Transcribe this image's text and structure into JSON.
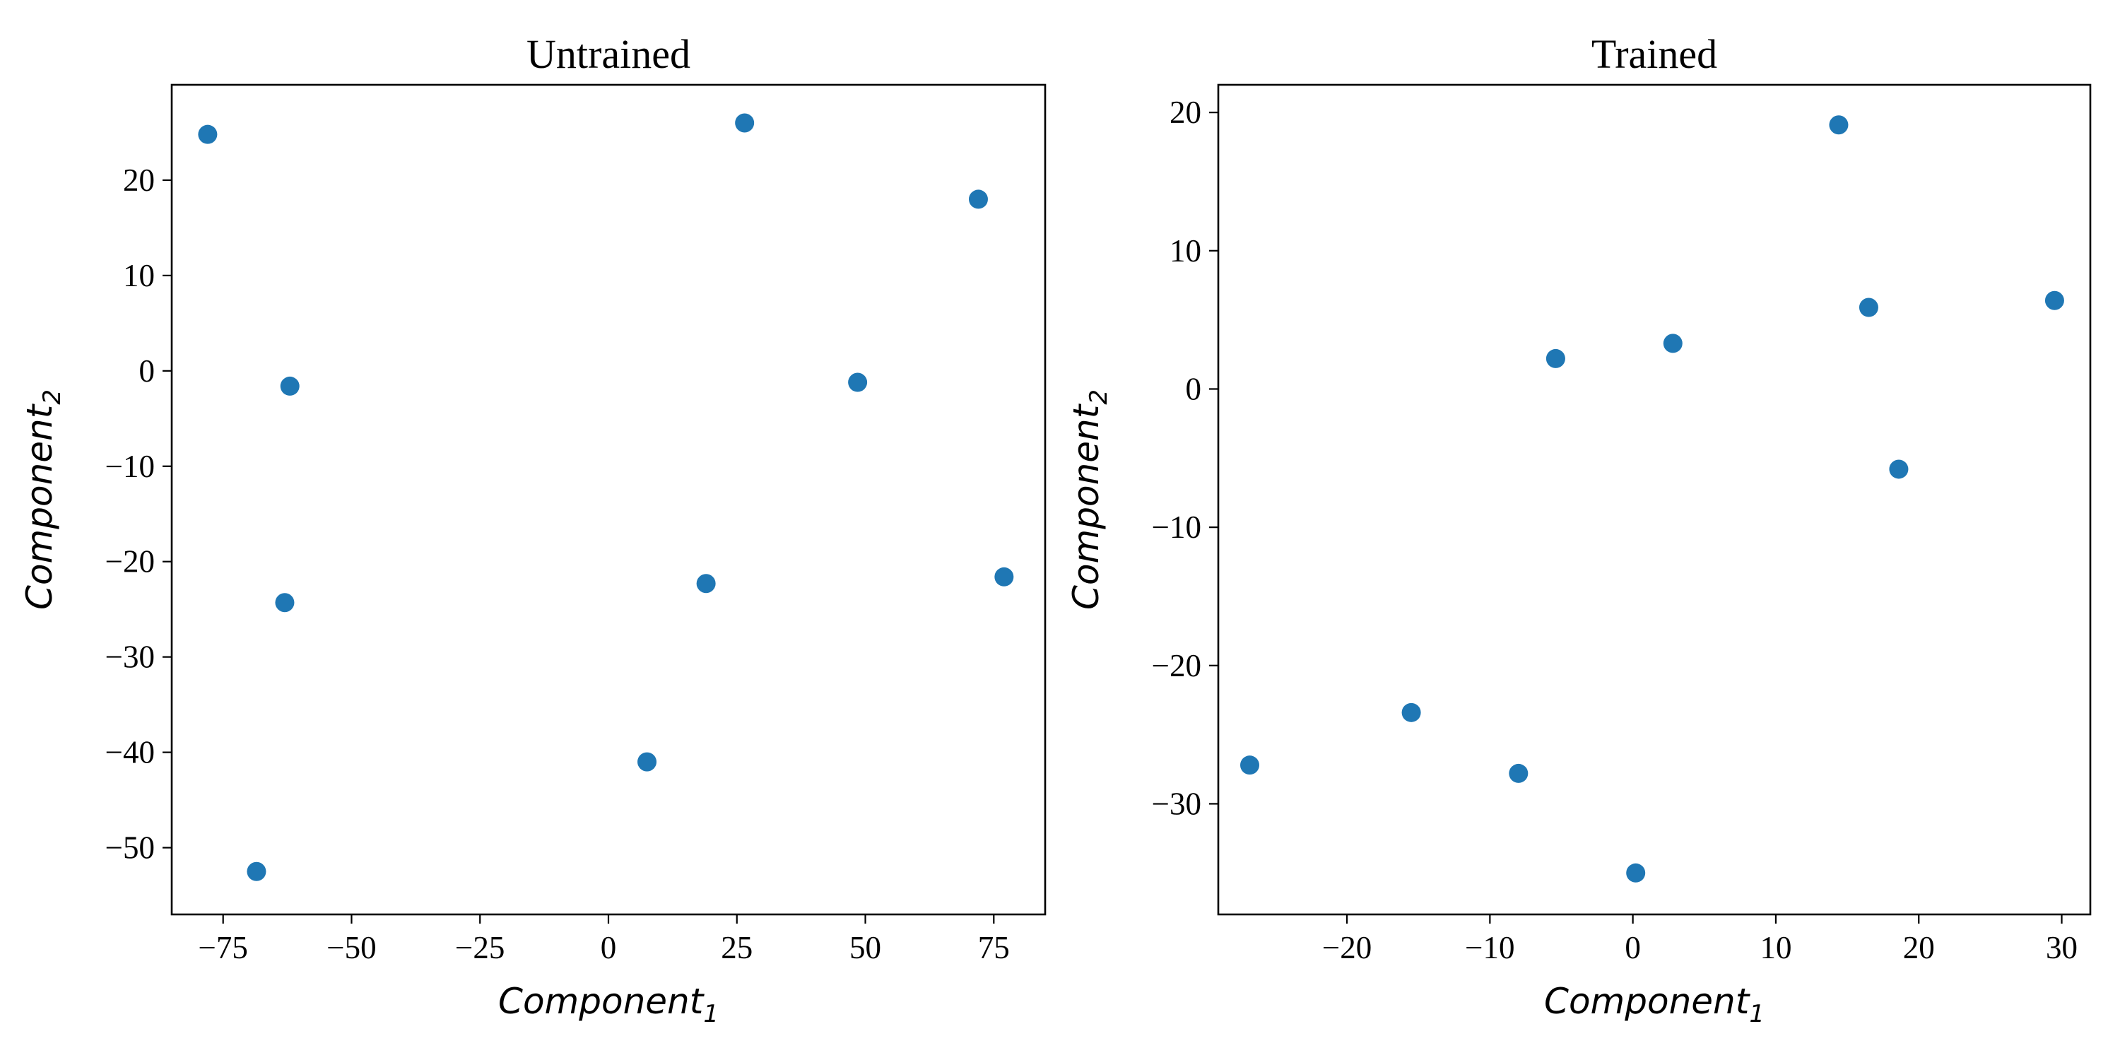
{
  "chart_data": [
    {
      "type": "scatter",
      "title": "Untrained",
      "xlabel": {
        "base": "Component",
        "sub": "1"
      },
      "ylabel": {
        "base": "Component",
        "sub": "2"
      },
      "xlim": [
        -85,
        85
      ],
      "ylim": [
        -57,
        30
      ],
      "xticks": [
        -75,
        -50,
        -25,
        0,
        25,
        50,
        75
      ],
      "xtick_labels": [
        "−75",
        "−50",
        "−25",
        "0",
        "25",
        "50",
        "75"
      ],
      "yticks": [
        -50,
        -40,
        -30,
        -20,
        -10,
        0,
        10,
        20
      ],
      "ytick_labels": [
        "−50",
        "−40",
        "−30",
        "−20",
        "−10",
        "0",
        "10",
        "20"
      ],
      "grid": false,
      "color": "#1f77b4",
      "points": [
        {
          "x": -78,
          "y": 24.8
        },
        {
          "x": -62,
          "y": -1.6
        },
        {
          "x": -63,
          "y": -24.3
        },
        {
          "x": -68.5,
          "y": -52.5
        },
        {
          "x": 7.5,
          "y": -41.0
        },
        {
          "x": 19,
          "y": -22.3
        },
        {
          "x": 26.5,
          "y": 26.0
        },
        {
          "x": 48.5,
          "y": -1.2
        },
        {
          "x": 72,
          "y": 18.0
        },
        {
          "x": 77,
          "y": -21.6
        }
      ]
    },
    {
      "type": "scatter",
      "title": "Trained",
      "xlabel": {
        "base": "Component",
        "sub": "1"
      },
      "ylabel": {
        "base": "Component",
        "sub": "2"
      },
      "xlim": [
        -29,
        32
      ],
      "ylim": [
        -38,
        22
      ],
      "xticks": [
        -20,
        -10,
        0,
        10,
        20,
        30
      ],
      "xtick_labels": [
        "−20",
        "−10",
        "0",
        "10",
        "20",
        "30"
      ],
      "yticks": [
        -30,
        -20,
        -10,
        0,
        10,
        20
      ],
      "ytick_labels": [
        "−30",
        "−20",
        "−10",
        "0",
        "10",
        "20"
      ],
      "grid": false,
      "color": "#1f77b4",
      "points": [
        {
          "x": -26.8,
          "y": -27.2
        },
        {
          "x": -15.5,
          "y": -23.4
        },
        {
          "x": -8.0,
          "y": -27.8
        },
        {
          "x": -5.4,
          "y": 2.2
        },
        {
          "x": 0.2,
          "y": -35.0
        },
        {
          "x": 2.8,
          "y": 3.3
        },
        {
          "x": 14.4,
          "y": 19.1
        },
        {
          "x": 16.5,
          "y": 5.9
        },
        {
          "x": 18.6,
          "y": -5.8
        },
        {
          "x": 29.5,
          "y": 6.4
        }
      ]
    }
  ]
}
